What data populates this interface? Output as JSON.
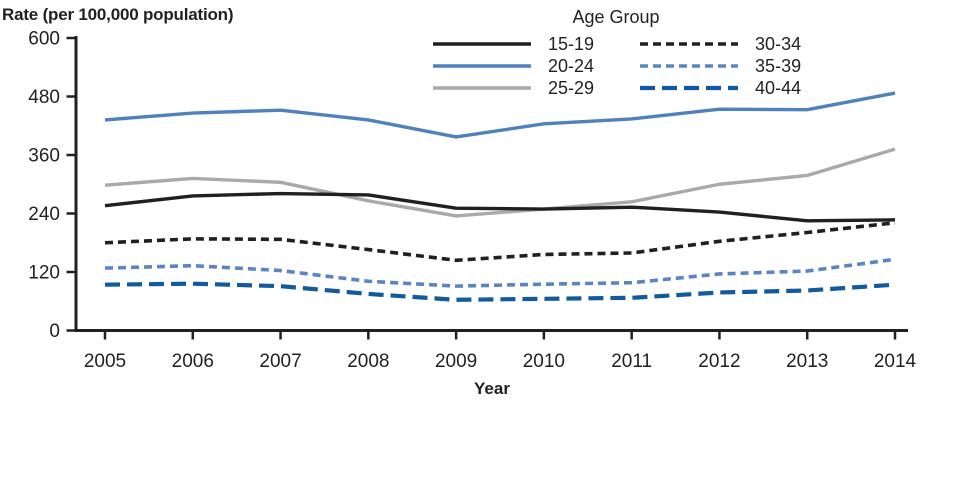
{
  "chart_data": {
    "type": "line",
    "title": "Rate (per 100,000 population)",
    "xlabel": "Year",
    "ylabel": "Rate (per 100,000 population)",
    "legend_title": "Age Group",
    "legend_position": "top-center",
    "grid": false,
    "x": [
      2005,
      2006,
      2007,
      2008,
      2009,
      2010,
      2011,
      2012,
      2013,
      2014
    ],
    "ylim": [
      0,
      600
    ],
    "yticks": [
      0,
      120,
      240,
      360,
      480,
      600
    ],
    "series": [
      {
        "name": "15-19",
        "color": "#231f20",
        "style": "solid",
        "values": [
          256,
          276,
          281,
          278,
          251,
          249,
          253,
          243,
          225,
          227
        ]
      },
      {
        "name": "20-24",
        "color": "#4f81bd",
        "style": "solid",
        "values": [
          432,
          446,
          452,
          432,
          397,
          424,
          434,
          454,
          453,
          487
        ]
      },
      {
        "name": "25-29",
        "color": "#a7a9ac",
        "style": "solid",
        "values": [
          298,
          312,
          304,
          266,
          235,
          249,
          264,
          300,
          318,
          372
        ]
      },
      {
        "name": "30-34",
        "color": "#231f20",
        "style": "dashed",
        "values": [
          180,
          188,
          187,
          166,
          144,
          156,
          159,
          183,
          201,
          221
        ]
      },
      {
        "name": "35-39",
        "color": "#5b85c2",
        "style": "dashed",
        "values": [
          128,
          133,
          123,
          101,
          91,
          95,
          98,
          116,
          122,
          146
        ]
      },
      {
        "name": "40-44",
        "color": "#125a9e",
        "style": "long-dash",
        "values": [
          94,
          96,
          91,
          75,
          63,
          65,
          67,
          78,
          82,
          94
        ]
      }
    ]
  }
}
